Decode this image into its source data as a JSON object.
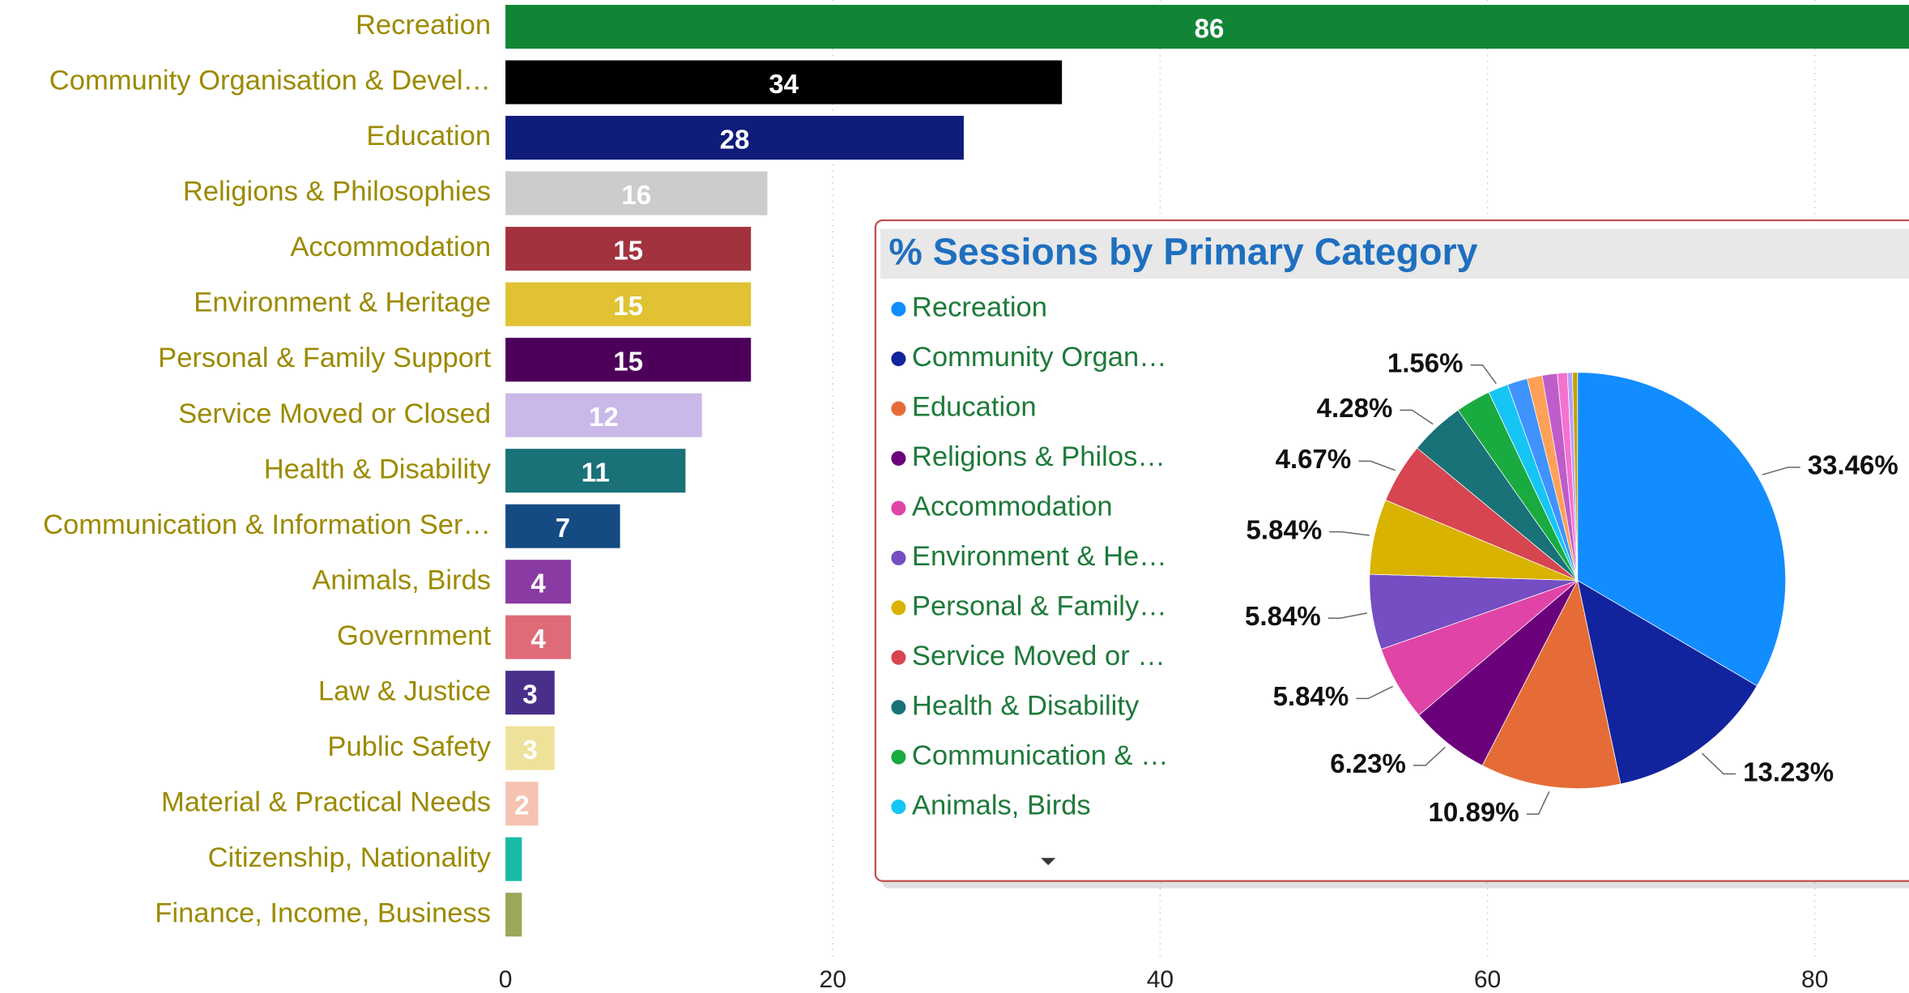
{
  "chart_data": [
    {
      "type": "hbar",
      "categories": [
        "Recreation",
        "Community Organisation & Devel…",
        "Education",
        "Religions & Philosophies",
        "Accommodation",
        "Environment & Heritage",
        "Personal & Family Support",
        "Service Moved or Closed",
        "Health & Disability",
        "Communication & Information Ser…",
        "Animals, Birds",
        "Government",
        "Law & Justice",
        "Public Safety",
        "Material & Practical Needs",
        "Citizenship, Nationality",
        "Finance, Income, Business"
      ],
      "values": [
        86,
        34,
        28,
        16,
        15,
        15,
        15,
        12,
        11,
        7,
        4,
        4,
        3,
        3,
        2,
        1,
        1
      ],
      "colors": [
        "#118535",
        "#000000",
        "#0f1c7a",
        "#cccccc",
        "#a3323f",
        "#e0c232",
        "#4d005a",
        "#c9b8e8",
        "#1a7178",
        "#134b82",
        "#8a3aa3",
        "#e06b78",
        "#4a2f8a",
        "#eee19a",
        "#f5c3b0",
        "#19bba6",
        "#9aa85a"
      ],
      "xlim": [
        0,
        90
      ],
      "xticks": [
        0,
        20,
        40,
        60,
        80
      ],
      "grid": true
    },
    {
      "type": "pie",
      "title": "% Sessions by Primary Category",
      "legend_labels": [
        "Recreation",
        "Community Organ…",
        "Education",
        "Religions & Philos…",
        "Accommodation",
        "Environment & He…",
        "Personal & Family…",
        "Service Moved or …",
        "Health & Disability",
        "Communication & …",
        "Animals, Birds"
      ],
      "values": [
        33.46,
        13.23,
        10.89,
        6.23,
        5.84,
        5.84,
        5.84,
        4.67,
        4.28,
        2.72,
        1.56,
        1.56,
        1.17,
        1.17,
        0.78,
        0.39,
        0.39
      ],
      "value_labels": [
        "33.46%",
        "13.23%",
        "10.89%",
        "6.23%",
        "5.84%",
        "5.84%",
        "5.84%",
        "4.67%",
        "4.28%",
        null,
        "1.56%",
        null,
        null,
        null,
        null,
        null,
        null
      ],
      "colors": [
        "#118dff",
        "#12239e",
        "#e66c37",
        "#6b007b",
        "#e044a7",
        "#744ec2",
        "#d9b300",
        "#d64550",
        "#197278",
        "#1aab40",
        "#15c6f4",
        "#4092ff",
        "#ffa058",
        "#be5dc9",
        "#f472d0",
        "#b5a1ff",
        "#c4a200"
      ]
    }
  ]
}
